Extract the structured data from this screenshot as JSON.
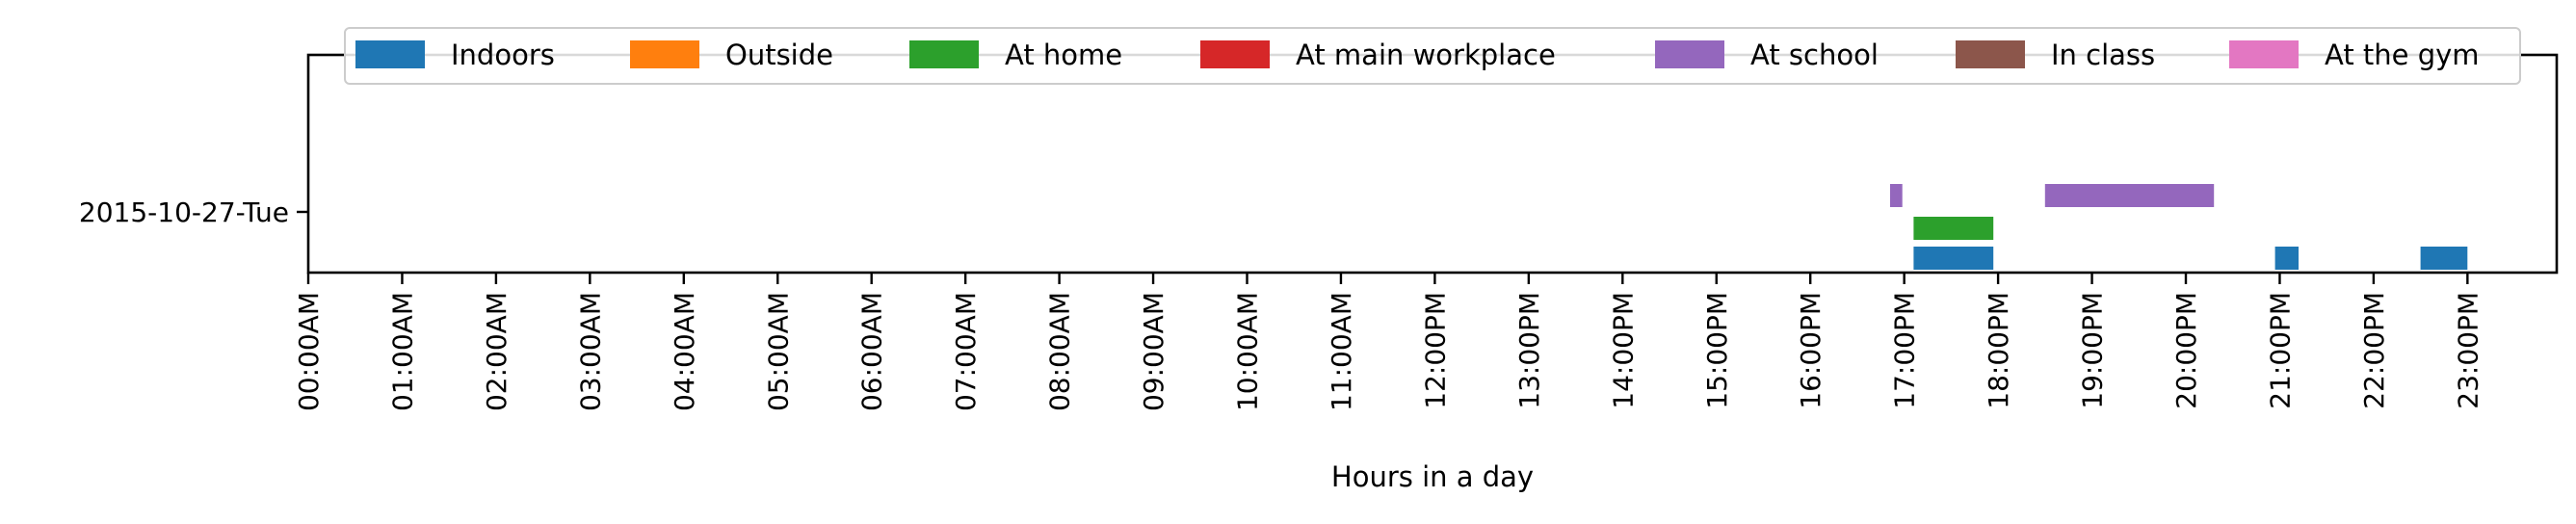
{
  "chart_data": {
    "type": "bar",
    "orientation": "horizontal-timeline",
    "xlabel": "Hours in a day",
    "ylabel": "",
    "xlim": [
      0,
      24
    ],
    "x_ticks": [
      {
        "value": 0,
        "label": "00:00AM"
      },
      {
        "value": 1,
        "label": "01:00AM"
      },
      {
        "value": 2,
        "label": "02:00AM"
      },
      {
        "value": 3,
        "label": "03:00AM"
      },
      {
        "value": 4,
        "label": "04:00AM"
      },
      {
        "value": 5,
        "label": "05:00AM"
      },
      {
        "value": 6,
        "label": "06:00AM"
      },
      {
        "value": 7,
        "label": "07:00AM"
      },
      {
        "value": 8,
        "label": "08:00AM"
      },
      {
        "value": 9,
        "label": "09:00AM"
      },
      {
        "value": 10,
        "label": "10:00AM"
      },
      {
        "value": 11,
        "label": "11:00AM"
      },
      {
        "value": 12,
        "label": "12:00PM"
      },
      {
        "value": 13,
        "label": "13:00PM"
      },
      {
        "value": 14,
        "label": "14:00PM"
      },
      {
        "value": 15,
        "label": "15:00PM"
      },
      {
        "value": 16,
        "label": "16:00PM"
      },
      {
        "value": 17,
        "label": "17:00PM"
      },
      {
        "value": 18,
        "label": "18:00PM"
      },
      {
        "value": 19,
        "label": "19:00PM"
      },
      {
        "value": 20,
        "label": "20:00PM"
      },
      {
        "value": 21,
        "label": "21:00PM"
      },
      {
        "value": 22,
        "label": "22:00PM"
      },
      {
        "value": 23,
        "label": "23:00PM"
      }
    ],
    "categories": [
      "2015-10-27-Tue"
    ],
    "legend_position": "top",
    "grid": false,
    "series": [
      {
        "name": "Indoors",
        "color": "#1f77b4",
        "lane": 0,
        "intervals": [
          [
            17.1,
            17.95
          ],
          [
            20.95,
            21.2
          ],
          [
            22.5,
            23.0
          ]
        ]
      },
      {
        "name": "Outside",
        "color": "#ff7f0e",
        "lane": 1,
        "intervals": []
      },
      {
        "name": "At home",
        "color": "#2ca02c",
        "lane": 2,
        "intervals": [
          [
            17.1,
            17.95
          ]
        ]
      },
      {
        "name": "At main workplace",
        "color": "#d62728",
        "lane": 3,
        "intervals": []
      },
      {
        "name": "At school",
        "color": "#9467bd",
        "lane": 4,
        "intervals": [
          [
            16.85,
            16.98
          ],
          [
            18.5,
            20.3
          ]
        ]
      },
      {
        "name": "In class",
        "color": "#8c564b",
        "lane": 5,
        "intervals": []
      },
      {
        "name": "At the gym",
        "color": "#e377c2",
        "lane": 6,
        "intervals": []
      }
    ]
  }
}
